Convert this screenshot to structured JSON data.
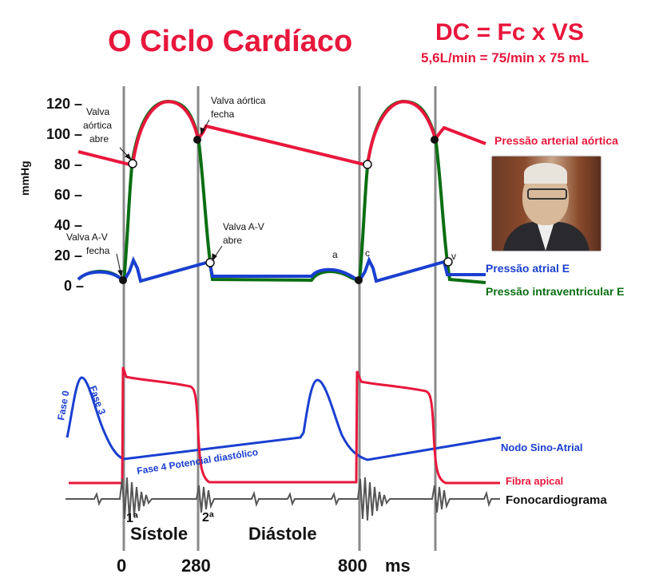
{
  "title": "O Ciclo Cardíaco",
  "formula": {
    "main": "DC = Fc x VS",
    "sub": "5,6L/min = 75/min x 75 mL"
  },
  "y_axis": {
    "label": "mmHg",
    "ticks": [
      "120 –",
      "100 –",
      "80 –",
      "60 –",
      "40 –",
      "20 –",
      "0 –"
    ]
  },
  "annotations": {
    "aortic_open": [
      "Valva",
      "aórtica",
      "abre"
    ],
    "aortic_close": [
      "Valva aórtica",
      "fecha"
    ],
    "av_close": [
      "Valva A-V",
      "fecha"
    ],
    "av_open": [
      "Valva A-V",
      "abre"
    ],
    "wave_a": "a",
    "wave_c": "c",
    "wave_v": "v"
  },
  "legend": {
    "aortic": "Pressão arterial aórtica",
    "atrial": "Pressão atrial E",
    "ventricular": "Pressão intraventricular E",
    "sa_node": "Nodo Sino-Atrial",
    "apical": "Fibra apical",
    "phono": "Fonocardiograma"
  },
  "ap_labels": {
    "phase0": "Fase 0",
    "phase3": "Fase 3",
    "phase4": "Fase 4 Potencial diastólico"
  },
  "heart_sounds": {
    "first": "1ª",
    "second": "2ª"
  },
  "phases": {
    "systole": "Sístole",
    "diastole": "Diástole"
  },
  "time_axis": {
    "t0": "0",
    "t1": "280",
    "t2": "800",
    "unit": "ms"
  },
  "colors": {
    "aortic": "#e8173c",
    "atrial": "#1a3fd0",
    "ventricular": "#0a6e12",
    "title": "#e8173c",
    "guide": "#8a8a8a"
  }
}
